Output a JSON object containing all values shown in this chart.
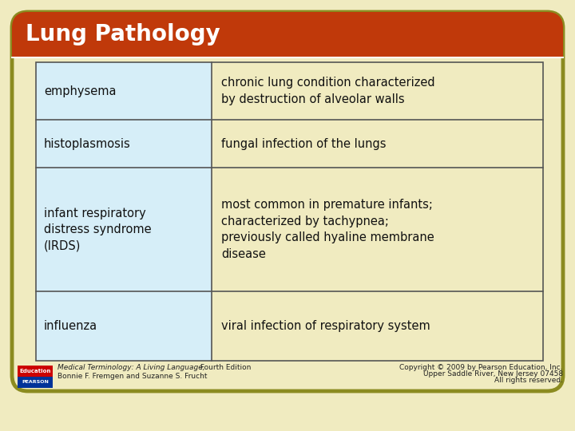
{
  "title": "Lung Pathology",
  "title_color": "#FFFFFF",
  "title_bg_color": "#C0390A",
  "background_color": "#F0EBC0",
  "table_left_col_bg": "#D6EEF8",
  "table_right_col_bg": "#F0EBC0",
  "table_border_color": "#555555",
  "scroll_border_color": "#8B8B20",
  "scroll_bg": "#F0EBC0",
  "rows": [
    {
      "term": "emphysema",
      "definition": "chronic lung condition characterized\nby destruction of alveolar walls"
    },
    {
      "term": "histoplasmosis",
      "definition": "fungal infection of the lungs"
    },
    {
      "term": "infant respiratory\ndistress syndrome\n(IRDS)",
      "definition": "most common in premature infants;\ncharacterized by tachypnea;\npreviously called hyaline membrane\ndisease"
    },
    {
      "term": "influenza",
      "definition": "viral infection of respiratory system"
    }
  ],
  "footer_left_italic": "Medical Terminology: A Living Language,",
  "footer_left_normal": " Fourth Edition",
  "footer_left_line2": "Bonnie F. Fremgen and Suzanne S. Frucht",
  "footer_right_line1": "Copyright © 2009 by Pearson Education, Inc.",
  "footer_right_line2": "Upper Saddle River, New Jersey 07458",
  "footer_right_line3": "All rights reserved.",
  "pearson_top_color": "#CC0000",
  "pearson_bottom_color": "#003399",
  "term_fontsize": 10.5,
  "def_fontsize": 10.5,
  "title_fontsize": 20
}
